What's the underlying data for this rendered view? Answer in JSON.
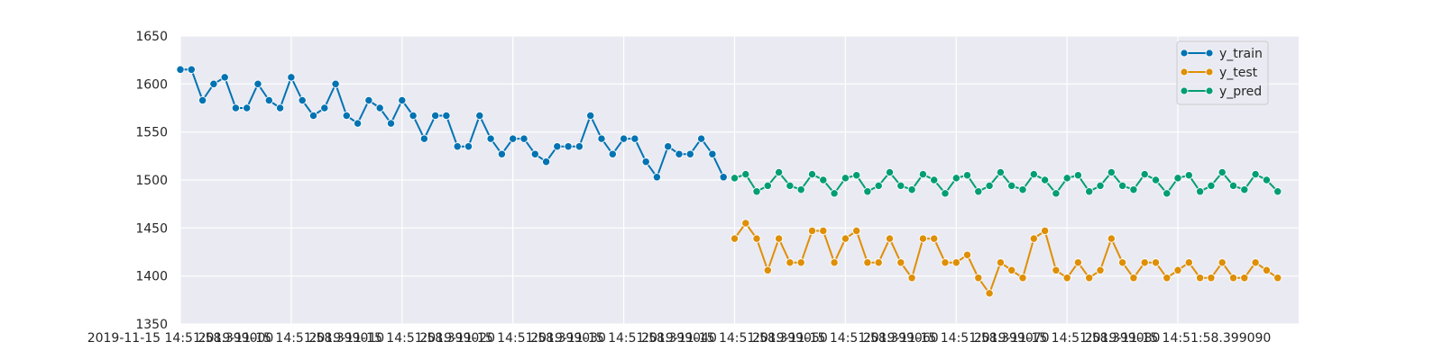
{
  "chart_data": {
    "type": "line",
    "style": "seaborn darkgrid",
    "background_color": "#eaeaf2",
    "grid": true,
    "xlim": [
      0,
      100.9
    ],
    "ylim": [
      1350,
      1650
    ],
    "yticks": [
      1350,
      1400,
      1450,
      1500,
      1550,
      1600,
      1650
    ],
    "xticks": [
      {
        "x": 0,
        "label": "2019-11-15 14:51:58.399000"
      },
      {
        "x": 10,
        "label": "2019-11-15 14:51:58.399010"
      },
      {
        "x": 20,
        "label": "2019-11-15 14:51:58.399020"
      },
      {
        "x": 30,
        "label": "2019-11-15 14:51:58.399030"
      },
      {
        "x": 40,
        "label": "2019-11-15 14:51:58.399040"
      },
      {
        "x": 50,
        "label": "2019-11-15 14:51:58.399050"
      },
      {
        "x": 60,
        "label": "2019-11-15 14:51:58.399060"
      },
      {
        "x": 70,
        "label": "2019-11-15 14:51:58.399070"
      },
      {
        "x": 80,
        "label": "2019-11-15 14:51:58.399080"
      },
      {
        "x": 90,
        "label": "2019-11-15 14:51:58.399090"
      }
    ],
    "legend_position": "top-right",
    "series": [
      {
        "name": "y_train",
        "color": "#0173b2",
        "x_start": 0,
        "values": [
          1615,
          1615,
          1583,
          1600,
          1607,
          1575,
          1575,
          1600,
          1583,
          1575,
          1607,
          1583,
          1567,
          1575,
          1600,
          1567,
          1559,
          1583,
          1575,
          1559,
          1583,
          1567,
          1543,
          1567,
          1567,
          1535,
          1535,
          1567,
          1543,
          1527,
          1543,
          1543,
          1527,
          1519,
          1535,
          1535,
          1535,
          1567,
          1543,
          1527,
          1543,
          1543,
          1519,
          1503,
          1535,
          1527,
          1527,
          1543,
          1527,
          1503
        ]
      },
      {
        "name": "y_test",
        "color": "#de8f05",
        "x_start": 50,
        "values": [
          1439,
          1455,
          1439,
          1406,
          1439,
          1414,
          1414,
          1447,
          1447,
          1414,
          1439,
          1447,
          1414,
          1414,
          1439,
          1414,
          1398,
          1439,
          1439,
          1414,
          1414,
          1422,
          1398,
          1382,
          1414,
          1406,
          1398,
          1439,
          1447,
          1406,
          1398,
          1414,
          1398,
          1406,
          1439,
          1414,
          1398,
          1414,
          1414,
          1398,
          1406,
          1414,
          1398,
          1398,
          1414,
          1398,
          1398,
          1414,
          1406,
          1398
        ]
      },
      {
        "name": "y_pred",
        "color": "#029e73",
        "x_start": 50,
        "values": [
          1502,
          1506,
          1488,
          1494,
          1508,
          1494,
          1490,
          1506,
          1500,
          1486,
          1502,
          1505,
          1488,
          1494,
          1508,
          1494,
          1490,
          1506,
          1500,
          1486,
          1502,
          1505,
          1488,
          1494,
          1508,
          1494,
          1490,
          1506,
          1500,
          1486,
          1502,
          1505,
          1488,
          1494,
          1508,
          1494,
          1490,
          1506,
          1500,
          1486,
          1502,
          1505,
          1488,
          1494,
          1508,
          1494,
          1490,
          1506,
          1500,
          1488
        ]
      }
    ]
  }
}
